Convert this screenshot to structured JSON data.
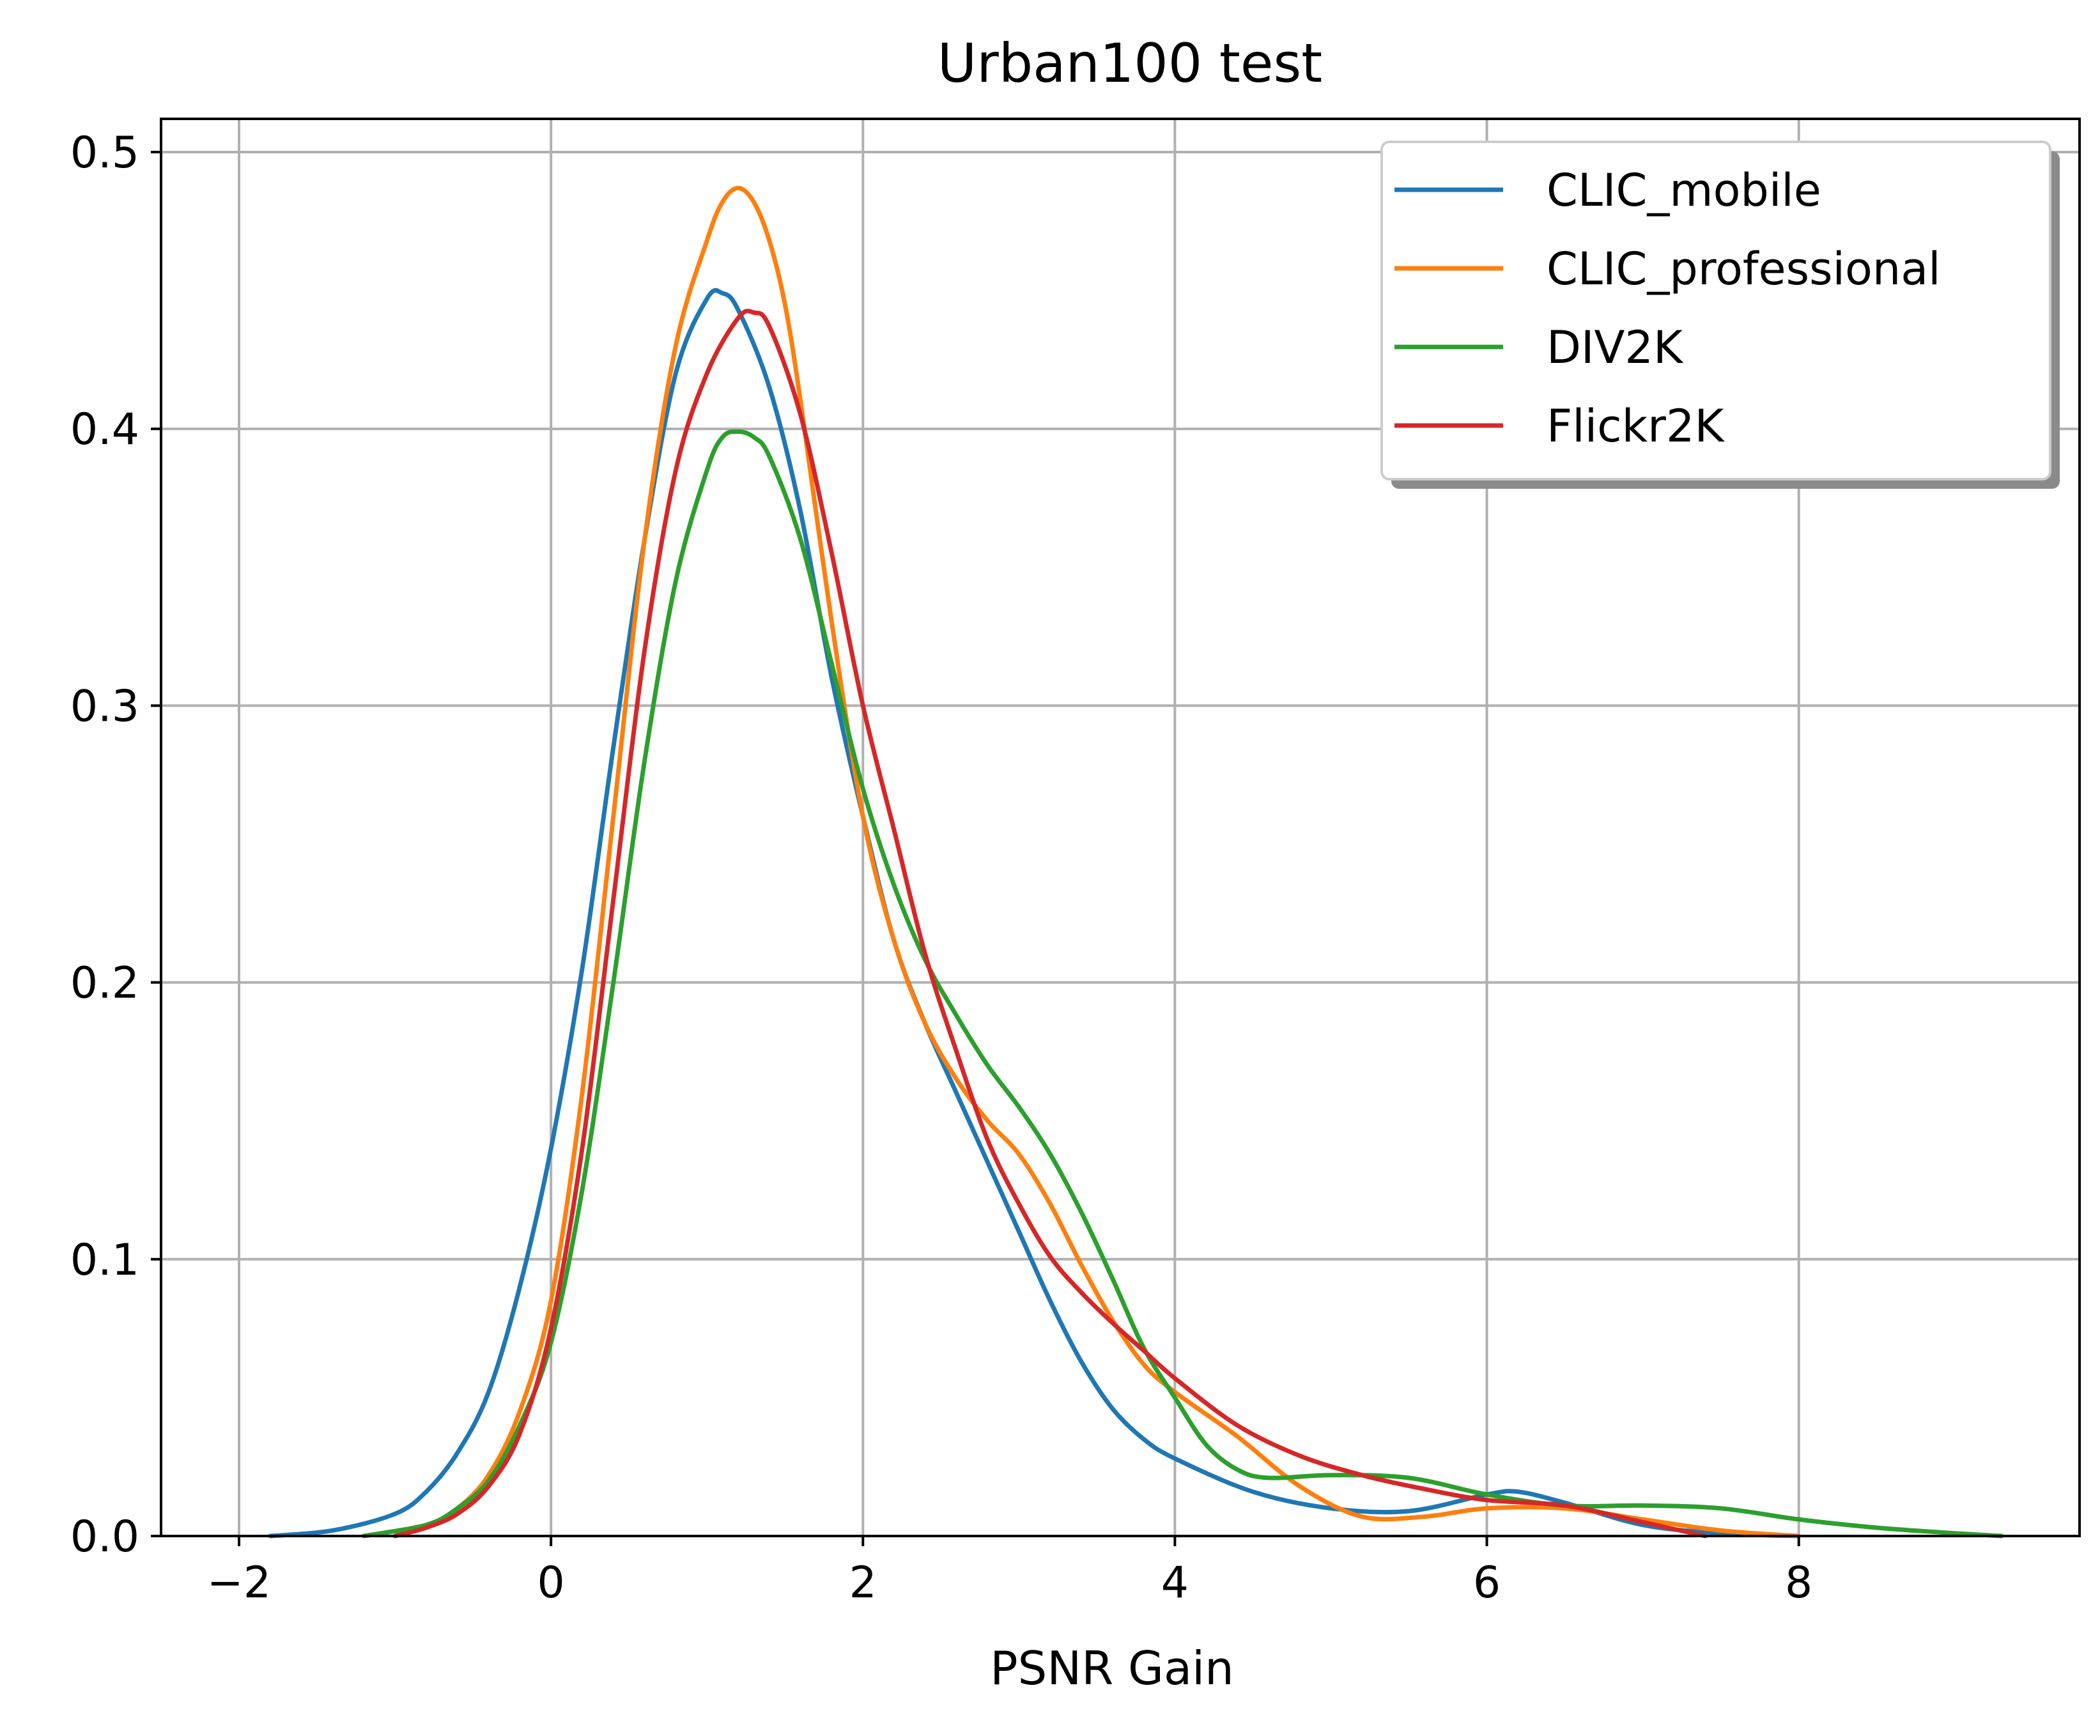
{
  "chart_data": {
    "type": "line",
    "title": "Urban100 test",
    "xlabel": "PSNR Gain",
    "ylabel": "",
    "xlim": [
      -2.5,
      9.8
    ],
    "ylim": [
      0.0,
      0.512
    ],
    "xticks": [
      -2,
      0,
      2,
      4,
      6,
      8
    ],
    "xtick_labels": [
      "−2",
      "0",
      "2",
      "4",
      "6",
      "8"
    ],
    "yticks": [
      0.0,
      0.1,
      0.2,
      0.3,
      0.4,
      0.5
    ],
    "ytick_labels": [
      "0.0",
      "0.1",
      "0.2",
      "0.3",
      "0.4",
      "0.5"
    ],
    "grid": true,
    "legend_position": "top-right",
    "series": [
      {
        "name": "CLIC_mobile",
        "color": "#1f77b4",
        "x": [
          -1.8,
          -1.4,
          -1.0,
          -0.8,
          -0.6,
          -0.4,
          -0.2,
          0.0,
          0.2,
          0.4,
          0.6,
          0.8,
          1.0,
          1.1,
          1.2,
          1.4,
          1.6,
          1.8,
          2.0,
          2.2,
          2.4,
          2.6,
          2.8,
          3.0,
          3.2,
          3.4,
          3.6,
          3.8,
          4.0,
          4.5,
          5.0,
          5.5,
          6.0,
          6.2,
          6.5,
          7.0,
          7.5,
          8.0
        ],
        "y": [
          0.0,
          0.002,
          0.008,
          0.016,
          0.03,
          0.052,
          0.09,
          0.14,
          0.205,
          0.285,
          0.36,
          0.42,
          0.447,
          0.449,
          0.443,
          0.415,
          0.37,
          0.31,
          0.26,
          0.215,
          0.185,
          0.16,
          0.135,
          0.11,
          0.085,
          0.063,
          0.046,
          0.035,
          0.028,
          0.016,
          0.01,
          0.009,
          0.015,
          0.016,
          0.012,
          0.004,
          0.001,
          0.0
        ]
      },
      {
        "name": "CLIC_professional",
        "color": "#ff7f0e",
        "x": [
          -1.2,
          -0.8,
          -0.6,
          -0.4,
          -0.2,
          0.0,
          0.2,
          0.4,
          0.6,
          0.8,
          1.0,
          1.1,
          1.2,
          1.3,
          1.4,
          1.5,
          1.6,
          1.8,
          2.0,
          2.2,
          2.4,
          2.6,
          2.8,
          3.0,
          3.2,
          3.4,
          3.6,
          3.8,
          4.0,
          4.4,
          4.8,
          5.2,
          5.6,
          6.0,
          6.5,
          7.0,
          7.5,
          8.0
        ],
        "y": [
          0.0,
          0.004,
          0.01,
          0.022,
          0.045,
          0.085,
          0.16,
          0.26,
          0.36,
          0.43,
          0.468,
          0.482,
          0.487,
          0.482,
          0.468,
          0.445,
          0.41,
          0.33,
          0.26,
          0.215,
          0.185,
          0.165,
          0.15,
          0.138,
          0.12,
          0.098,
          0.078,
          0.062,
          0.052,
          0.036,
          0.018,
          0.007,
          0.007,
          0.01,
          0.01,
          0.006,
          0.002,
          0.0
        ]
      },
      {
        "name": "DIV2K",
        "color": "#2ca02c",
        "x": [
          -1.2,
          -0.8,
          -0.6,
          -0.4,
          -0.2,
          0.0,
          0.2,
          0.4,
          0.6,
          0.8,
          1.0,
          1.1,
          1.2,
          1.3,
          1.4,
          1.6,
          1.8,
          2.0,
          2.2,
          2.4,
          2.6,
          2.8,
          3.0,
          3.2,
          3.4,
          3.6,
          3.8,
          4.0,
          4.2,
          4.4,
          4.6,
          5.0,
          5.5,
          6.0,
          6.5,
          7.0,
          7.5,
          8.0,
          8.5,
          9.0,
          9.3
        ],
        "y": [
          0.0,
          0.004,
          0.01,
          0.02,
          0.04,
          0.07,
          0.125,
          0.2,
          0.28,
          0.345,
          0.385,
          0.397,
          0.399,
          0.397,
          0.39,
          0.36,
          0.315,
          0.27,
          0.235,
          0.208,
          0.188,
          0.17,
          0.155,
          0.138,
          0.117,
          0.093,
          0.068,
          0.05,
          0.033,
          0.024,
          0.021,
          0.022,
          0.021,
          0.015,
          0.011,
          0.011,
          0.01,
          0.006,
          0.003,
          0.001,
          0.0
        ]
      },
      {
        "name": "Flickr2K",
        "color": "#d62728",
        "x": [
          -1.0,
          -0.8,
          -0.6,
          -0.4,
          -0.2,
          0.0,
          0.2,
          0.4,
          0.6,
          0.8,
          1.0,
          1.2,
          1.3,
          1.4,
          1.6,
          1.8,
          2.0,
          2.2,
          2.4,
          2.6,
          2.8,
          3.0,
          3.2,
          3.4,
          3.6,
          3.8,
          4.0,
          4.4,
          4.8,
          5.2,
          5.6,
          6.0,
          6.5,
          7.0,
          7.4
        ],
        "y": [
          0.0,
          0.003,
          0.008,
          0.018,
          0.037,
          0.075,
          0.14,
          0.23,
          0.32,
          0.385,
          0.42,
          0.44,
          0.442,
          0.437,
          0.405,
          0.355,
          0.3,
          0.255,
          0.21,
          0.175,
          0.143,
          0.12,
          0.101,
          0.088,
          0.077,
          0.067,
          0.057,
          0.04,
          0.029,
          0.022,
          0.017,
          0.013,
          0.011,
          0.005,
          0.0
        ]
      }
    ]
  }
}
